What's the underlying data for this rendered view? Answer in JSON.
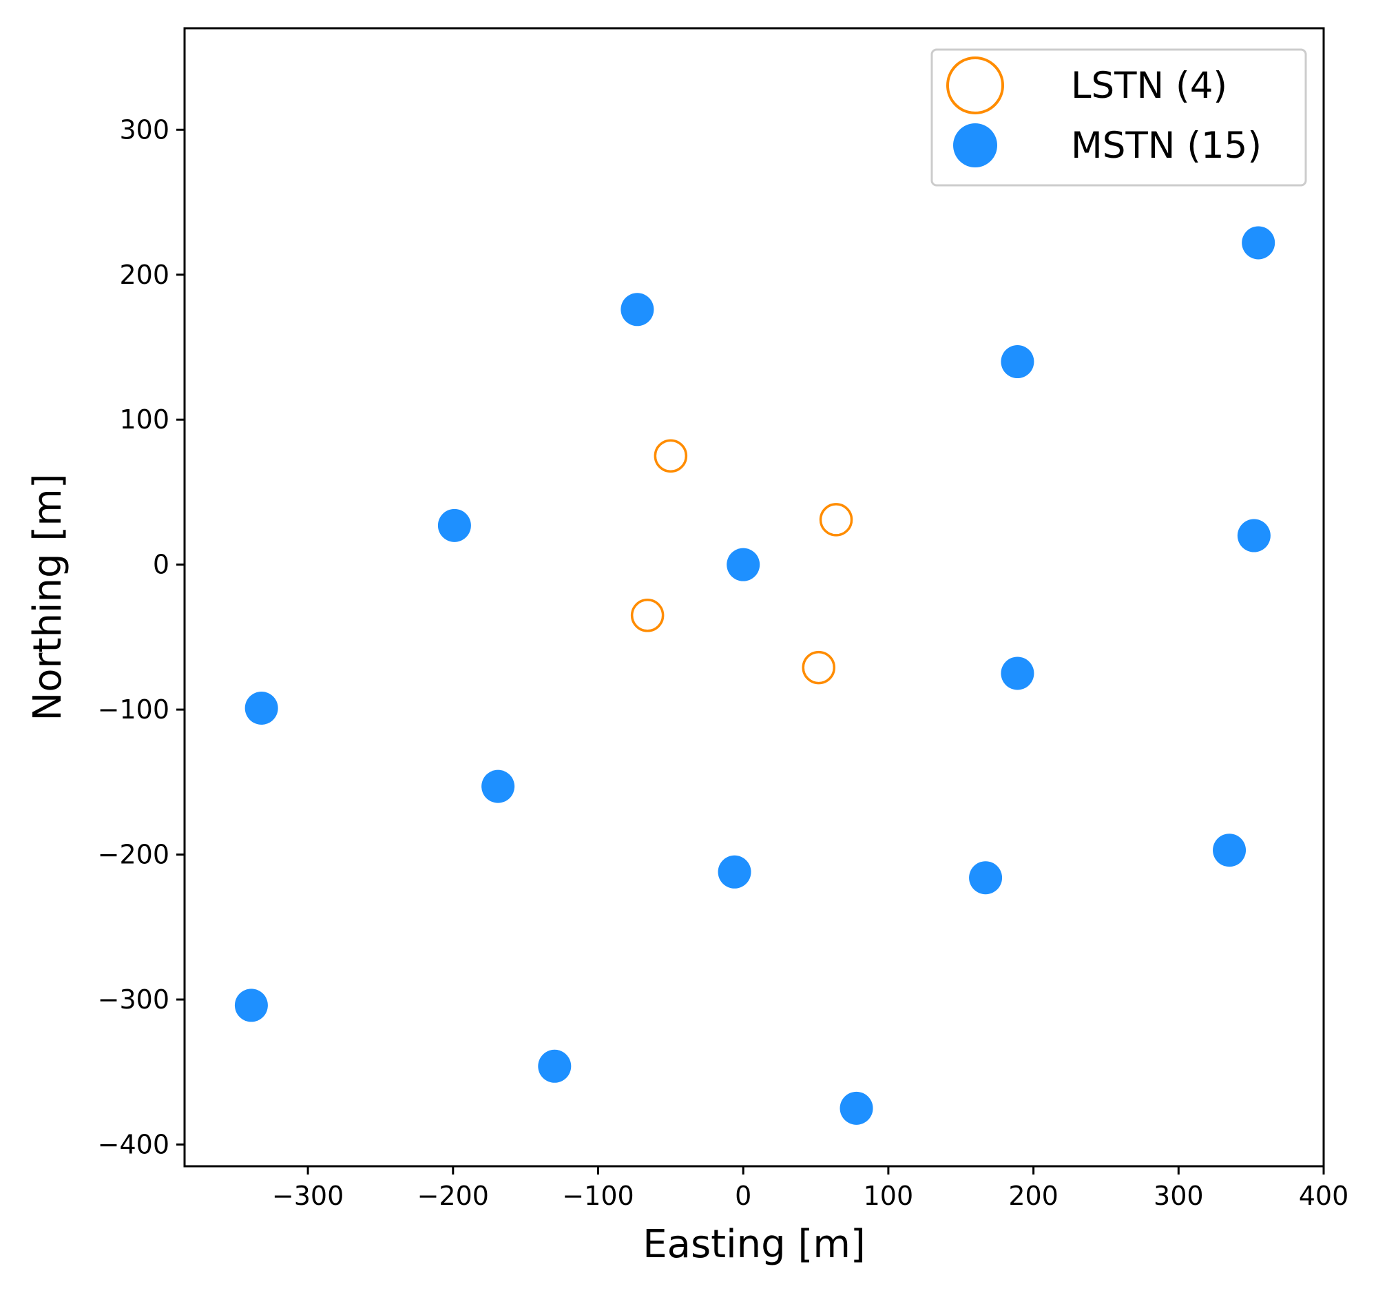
{
  "chart_data": {
    "type": "scatter",
    "title": "",
    "xlabel": "Easting [m]",
    "ylabel": "Northing [m]",
    "xlim": [
      -385,
      400
    ],
    "ylim": [
      -415,
      370
    ],
    "xticks": [
      -300,
      -200,
      -100,
      0,
      100,
      200,
      300,
      400
    ],
    "yticks": [
      -400,
      -300,
      -200,
      -100,
      0,
      100,
      200,
      300
    ],
    "grid": false,
    "legend_position": "top-right",
    "series": [
      {
        "name": "LSTN (4)",
        "marker": "open-circle",
        "color": "#ff8c00",
        "points": [
          {
            "x": -50,
            "y": 75
          },
          {
            "x": 64,
            "y": 31
          },
          {
            "x": -66,
            "y": -35
          },
          {
            "x": 52,
            "y": -71
          }
        ]
      },
      {
        "name": "MSTN (15)",
        "marker": "filled-circle",
        "color": "#1e90ff",
        "points": [
          {
            "x": -73,
            "y": 176
          },
          {
            "x": 355,
            "y": 222
          },
          {
            "x": 189,
            "y": 140
          },
          {
            "x": -199,
            "y": 27
          },
          {
            "x": 0,
            "y": 0
          },
          {
            "x": 352,
            "y": 20
          },
          {
            "x": -332,
            "y": -99
          },
          {
            "x": 189,
            "y": -75
          },
          {
            "x": -169,
            "y": -153
          },
          {
            "x": -6,
            "y": -212
          },
          {
            "x": 167,
            "y": -216
          },
          {
            "x": 335,
            "y": -197
          },
          {
            "x": -339,
            "y": -304
          },
          {
            "x": -130,
            "y": -346
          },
          {
            "x": 78,
            "y": -375
          }
        ]
      }
    ]
  }
}
